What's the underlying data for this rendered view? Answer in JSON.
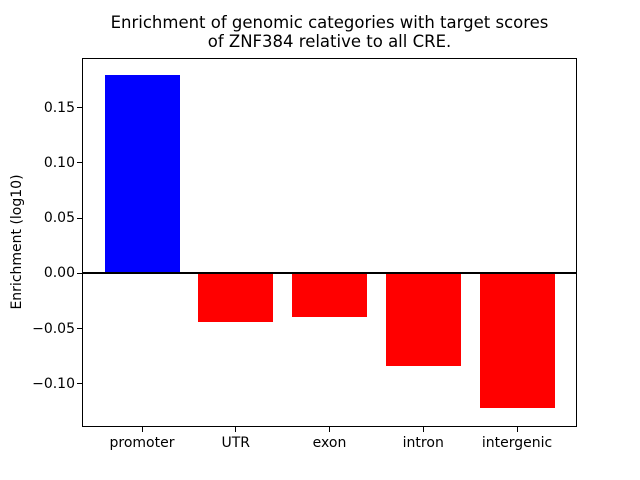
{
  "chart_data": {
    "type": "bar",
    "title": "Enrichment of genomic categories with target scores\nof ZNF384 relative to all CRE.",
    "title_lines": [
      "Enrichment of genomic categories with target scores",
      "of ZNF384 relative to all CRE."
    ],
    "xlabel": "",
    "ylabel": "Enrichment (log10)",
    "categories": [
      "promoter",
      "UTR",
      "exon",
      "intron",
      "intergenic"
    ],
    "values": [
      0.18,
      -0.044,
      -0.039,
      -0.084,
      -0.122
    ],
    "bar_colors": [
      "#0000ff",
      "#ff0000",
      "#ff0000",
      "#ff0000",
      "#ff0000"
    ],
    "positive_color": "#0000ff",
    "negative_color": "#ff0000",
    "bar_width_fraction": 0.8,
    "xlim": [
      -0.64,
      4.64
    ],
    "ylim": [
      -0.139,
      0.195
    ],
    "yticks": {
      "values": [
        0.15,
        0.1,
        0.05,
        0.0,
        -0.05,
        -0.1
      ],
      "labels": [
        "0.15",
        "0.10",
        "0.05",
        "0.00",
        "−0.05",
        "−0.10"
      ]
    },
    "zero_line": true,
    "grid": false,
    "legend": null,
    "background_color": "#ffffff",
    "axis_color": "#000000"
  }
}
